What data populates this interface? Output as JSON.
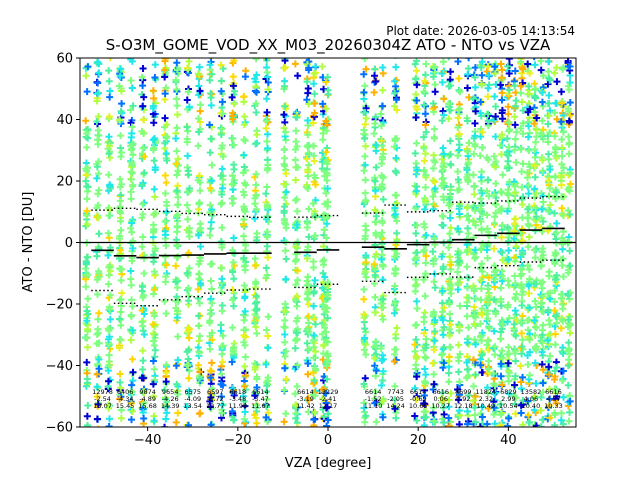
{
  "plot_date": "Plot date: 2026-03-05 14:13:54",
  "chart_data": {
    "type": "scatter",
    "title": "S-O3M_GOME_VOD_XX_M03_20260304Z ATO - NTO vs VZA",
    "xlabel": "VZA [degree]",
    "ylabel": "ATO - NTO [DU]",
    "xlim": [
      -55,
      55
    ],
    "ylim": [
      -60,
      60
    ],
    "xticks": [
      -40,
      -20,
      0,
      20,
      40
    ],
    "yticks": [
      -60,
      -40,
      -20,
      0,
      20,
      40,
      60
    ],
    "zero_line": 0,
    "columns_vza": [
      -53.5,
      -51,
      -48.5,
      -46,
      -43.5,
      -41,
      -38.5,
      -36,
      -33.5,
      -31,
      -28.5,
      -26,
      -23.5,
      -21,
      -18.5,
      -16,
      -13.5,
      -9.5,
      -7,
      -4.5,
      -3,
      -1,
      -0.2,
      8.2,
      10.5,
      12,
      15,
      19.5,
      21.5,
      23.5,
      25.5,
      27,
      29,
      31,
      32.5,
      34,
      35.5,
      37,
      38.5,
      40,
      41.5,
      43,
      44.5,
      46,
      47.5,
      49,
      50.5,
      52,
      53.5
    ],
    "bins": [
      {
        "vza": -50,
        "count": 12978,
        "mean": -2.54,
        "std": 13.07
      },
      {
        "vza": -45,
        "count": 6406,
        "mean": -4.34,
        "std": 15.45
      },
      {
        "vza": -40,
        "count": 9874,
        "mean": -4.89,
        "std": 15.68
      },
      {
        "vza": -35,
        "count": 9654,
        "mean": -4.26,
        "std": 14.39
      },
      {
        "vza": -30,
        "count": 6575,
        "mean": -4.09,
        "std": 13.54
      },
      {
        "vza": -25,
        "count": 6597,
        "mean": -3.72,
        "std": 12.77
      },
      {
        "vza": -20,
        "count": 6618,
        "mean": -3.48,
        "std": 11.98
      },
      {
        "vza": -15,
        "count": 6614,
        "mean": -3.47,
        "std": 11.67
      },
      {
        "vza": -5,
        "count": 6614,
        "mean": -3.19,
        "std": 11.42
      },
      {
        "vza": 0,
        "count": 13229,
        "mean": -2.41,
        "std": 11.17
      },
      {
        "vza": 10,
        "count": 6614,
        "mean": -1.52,
        "std": 11.1
      },
      {
        "vza": 15,
        "count": 7743,
        "mean": -2.05,
        "std": 14.24
      },
      {
        "vza": 20,
        "count": 6614,
        "mean": -0.69,
        "std": 10.65
      },
      {
        "vza": 25,
        "count": 6616,
        "mean": 0.06,
        "std": 10.27
      },
      {
        "vza": 30,
        "count": 8699,
        "mean": 0.92,
        "std": 12.18
      },
      {
        "vza": 35,
        "count": 11824,
        "mean": 2.32,
        "std": 10.49
      },
      {
        "vza": 40,
        "count": 6829,
        "mean": 2.99,
        "std": 10.54
      },
      {
        "vza": 45,
        "count": 13582,
        "mean": 4.06,
        "std": 10.4
      },
      {
        "vza": 50,
        "count": 6616,
        "mean": 4.57,
        "std": 10.33
      }
    ]
  }
}
